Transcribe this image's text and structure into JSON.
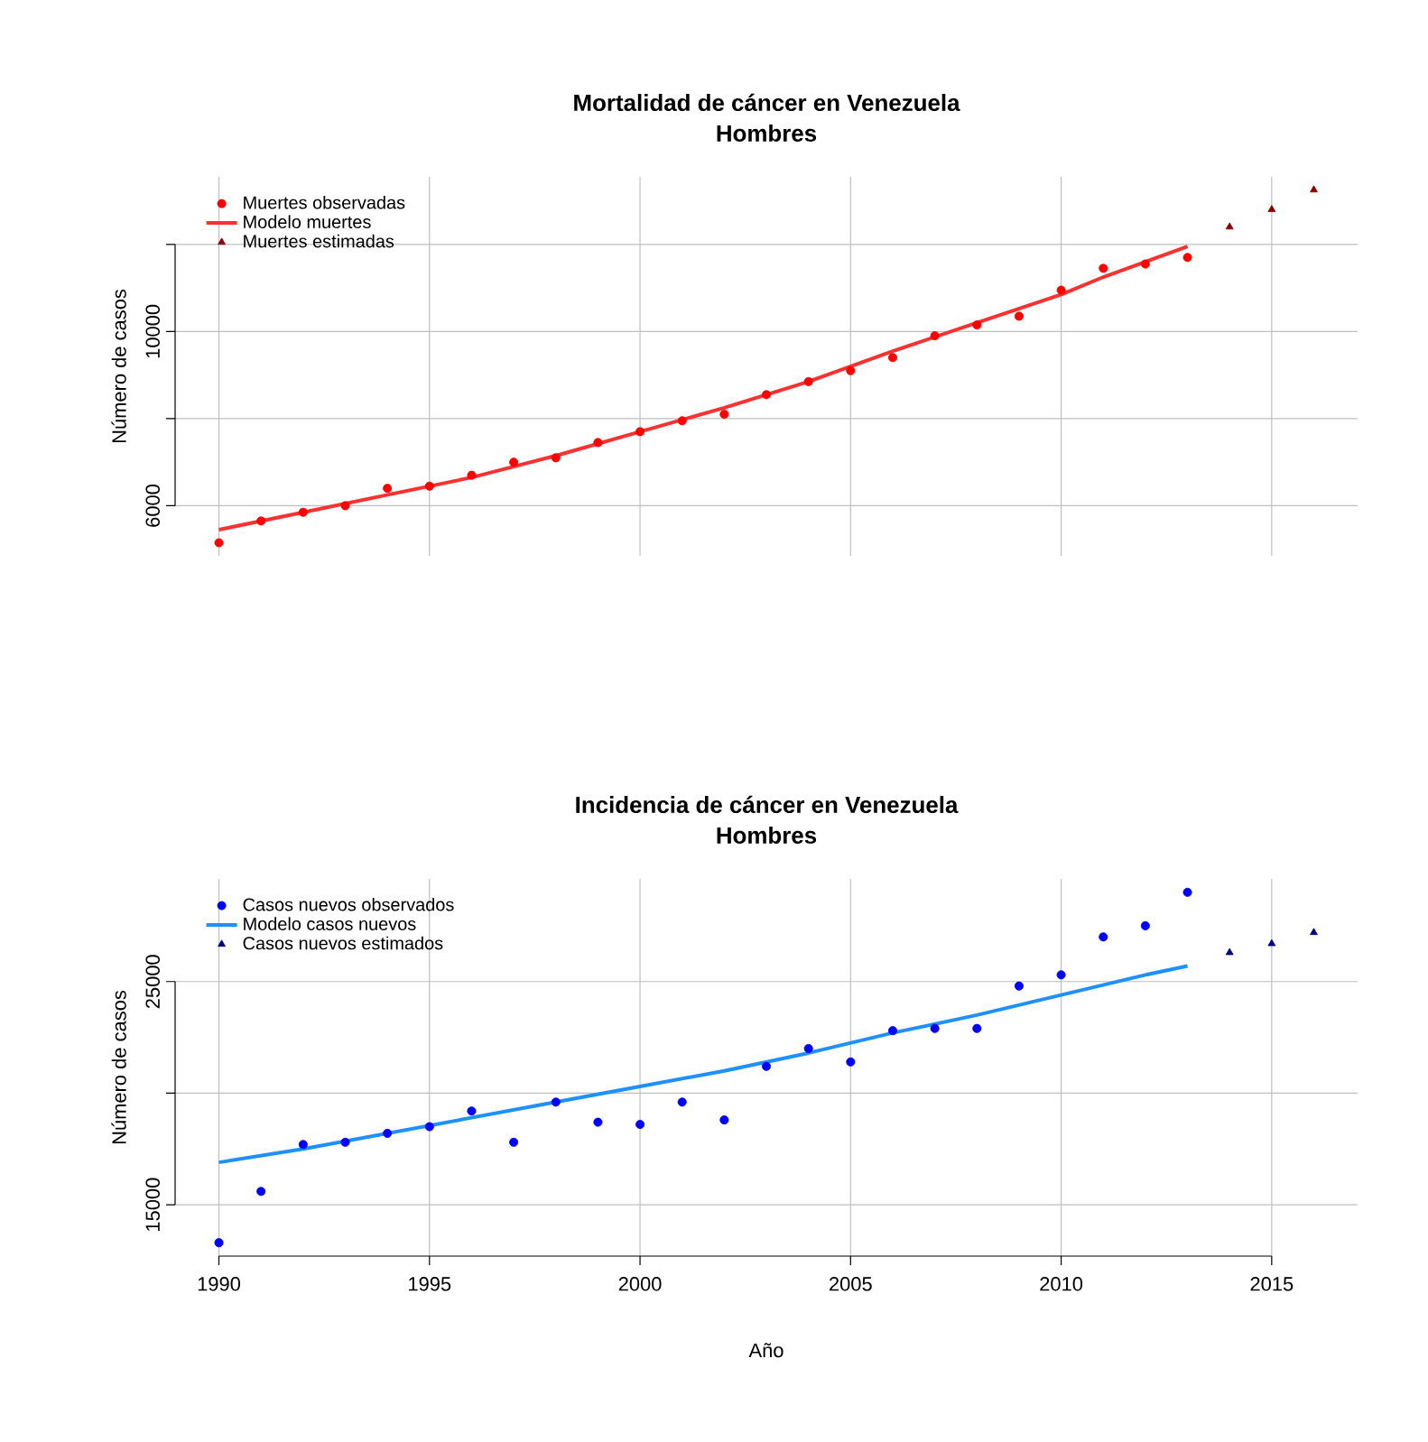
{
  "chart_data": [
    {
      "type": "scatter",
      "title": "Mortalidad de cáncer en Venezuela",
      "subtitle": "Hombres",
      "ylabel": "Número de casos",
      "xlim": [
        1988.96,
        2017.04
      ],
      "xticks": [
        1990,
        1995,
        2000,
        2005,
        2010,
        2015
      ],
      "ylim": [
        4850,
        13550
      ],
      "yticks": [
        6000,
        {
          "value": 8000,
          "label": null
        },
        10000,
        {
          "value": 12000,
          "label": null
        }
      ],
      "tick_labels": "y",
      "grid": true,
      "legend": "top left",
      "series": [
        {
          "name": "Muertes observadas",
          "type": "scatter",
          "marker": "circle",
          "color": "#ff0000",
          "x": [
            1990,
            1991,
            1992,
            1993,
            1994,
            1995,
            1996,
            1997,
            1998,
            1999,
            2000,
            2001,
            2002,
            2003,
            2004,
            2005,
            2006,
            2007,
            2008,
            2009,
            2010,
            2011,
            2012,
            2013
          ],
          "values": [
            5150,
            5650,
            5850,
            6000,
            6400,
            6450,
            6700,
            7000,
            7100,
            7450,
            7700,
            7950,
            8100,
            8550,
            8850,
            9100,
            9400,
            9900,
            10150,
            10350,
            10950,
            11450,
            11550,
            11700
          ]
        },
        {
          "name": "Modelo muertes",
          "type": "line",
          "marker": "none",
          "color": "#ff3030",
          "x": [
            1990,
            1992,
            1994,
            1996,
            1998,
            2000,
            2002,
            2004,
            2006,
            2008,
            2010,
            2011,
            2012,
            2013
          ],
          "values": [
            5450,
            5850,
            6250,
            6650,
            7150,
            7700,
            8250,
            8850,
            9550,
            10200,
            10850,
            11250,
            11600,
            11950
          ]
        },
        {
          "name": "Muertes estimadas",
          "type": "scatter",
          "marker": "triangle",
          "color": "#8b0000",
          "x": [
            2014,
            2015,
            2016
          ],
          "values": [
            12400,
            12800,
            13250
          ]
        }
      ]
    },
    {
      "type": "scatter",
      "title": "Incidencia de cáncer en Venezuela",
      "subtitle": "Hombres",
      "ylabel": "Número de casos",
      "xlabel": "Año",
      "xlim": [
        1988.96,
        2017.04
      ],
      "xticks": [
        1990,
        1995,
        2000,
        2005,
        2010,
        2015
      ],
      "ylim": [
        12700,
        29600
      ],
      "yticks": [
        15000,
        {
          "value": 20000,
          "label": null
        },
        25000
      ],
      "grid": true,
      "legend": "top left",
      "series": [
        {
          "name": "Casos nuevos observados",
          "type": "scatter",
          "marker": "circle",
          "color": "#0000ff",
          "x": [
            1990,
            1991,
            1992,
            1993,
            1994,
            1995,
            1996,
            1997,
            1998,
            1999,
            2000,
            2001,
            2002,
            2003,
            2004,
            2005,
            2006,
            2007,
            2008,
            2009,
            2010,
            2011,
            2012,
            2013
          ],
          "values": [
            13300,
            15600,
            17700,
            17800,
            18200,
            18500,
            19200,
            17800,
            19600,
            18700,
            18600,
            19600,
            18800,
            21200,
            22000,
            21400,
            22800,
            22900,
            22900,
            24800,
            25300,
            27000,
            27500,
            29000
          ]
        },
        {
          "name": "Modelo casos nuevos",
          "type": "line",
          "marker": "none",
          "color": "#1e90ff",
          "x": [
            1990,
            1992,
            1994,
            1996,
            1998,
            2000,
            2002,
            2004,
            2006,
            2008,
            2010,
            2012,
            2013
          ],
          "values": [
            16900,
            17500,
            18200,
            18900,
            19600,
            20300,
            21000,
            21800,
            22700,
            23500,
            24400,
            25300,
            25700
          ]
        },
        {
          "name": "Casos nuevos estimados",
          "type": "scatter",
          "marker": "triangle",
          "color": "#000080",
          "x": [
            2014,
            2015,
            2016
          ],
          "values": [
            26300,
            26700,
            27200
          ]
        }
      ]
    }
  ]
}
